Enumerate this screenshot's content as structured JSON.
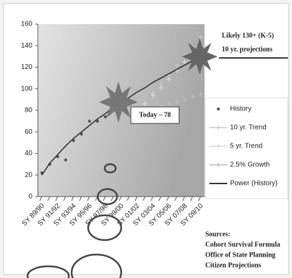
{
  "chart_data": {
    "type": "line",
    "categories": [
      "SY 89/90",
      null,
      "SY 91/92",
      null,
      "SY 93/94",
      null,
      "SY 95/96",
      null,
      "SY 97/98",
      null,
      "SY 99/00",
      null,
      "SY 01/02",
      null,
      "SY 03/04",
      null,
      "SY 05/06",
      null,
      "SY 07/08",
      null,
      "SY 09/10"
    ],
    "series": [
      {
        "name": "History",
        "color": "#555555",
        "marker": "dot",
        "values": [
          22,
          30,
          37,
          34,
          52,
          58,
          70,
          70,
          74,
          82,
          88,
          86,
          78,
          null,
          null,
          null,
          null,
          null,
          null,
          null,
          null
        ]
      },
      {
        "name": "10 yr. Trend",
        "color": "#c8c8c8",
        "marker": "cross",
        "values": [
          null,
          null,
          null,
          null,
          null,
          null,
          null,
          null,
          null,
          null,
          null,
          null,
          78,
          87,
          96,
          104,
          113,
          122,
          131,
          139,
          148
        ]
      },
      {
        "name": "5 yr. Trend",
        "color": "#d8d8d8",
        "marker": "cross",
        "values": [
          null,
          null,
          null,
          null,
          null,
          null,
          null,
          null,
          null,
          null,
          null,
          null,
          78,
          86,
          94,
          101,
          109,
          117,
          125,
          132,
          140
        ]
      },
      {
        "name": "2.5% Growth",
        "color": "#bcbcbc",
        "marker": "cross",
        "values": [
          null,
          null,
          null,
          null,
          null,
          null,
          null,
          null,
          null,
          null,
          null,
          null,
          78,
          80,
          82,
          84,
          86,
          88,
          90,
          93,
          95
        ]
      },
      {
        "name": "Power (History)",
        "color": "#333333",
        "marker": "line",
        "values": [
          20,
          31,
          39,
          47,
          54,
          60,
          66,
          72,
          77,
          83,
          87,
          92,
          97,
          101,
          106,
          110,
          114,
          118,
          122,
          126,
          130
        ]
      }
    ],
    "ylim": [
      0,
      160
    ],
    "yticks": [
      0,
      20,
      40,
      60,
      80,
      100,
      120,
      140,
      160
    ],
    "projection_title": "Likely 130+ (K-5)",
    "projection_subtitle": "10 yr. projections",
    "today_label": "Today – 78",
    "sources": {
      "title": "Sources:",
      "items": [
        "Cohort Survival Formula",
        "Office of State Planning",
        "Citizen Projections"
      ]
    }
  }
}
